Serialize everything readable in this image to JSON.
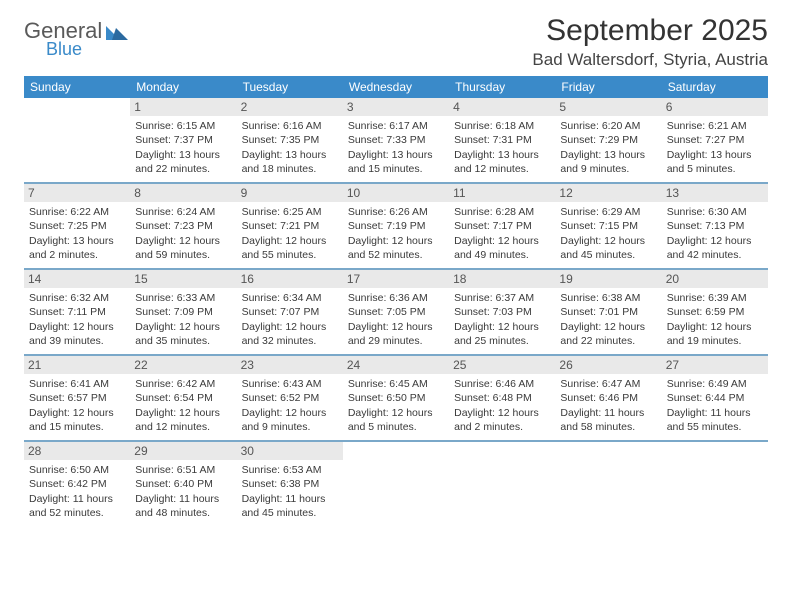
{
  "brand": {
    "top": "General",
    "bottom": "Blue"
  },
  "title": "September 2025",
  "location": "Bad Waltersdorf, Styria, Austria",
  "colors": {
    "header_bg": "#3a8ac9",
    "header_text": "#ffffff",
    "week_divider": "#7aa8c9",
    "daynum_bg": "#e9e9e9",
    "daynum_text": "#555555",
    "body_text": "#3a3a3a",
    "page_bg": "#ffffff"
  },
  "typography": {
    "title_fontsize": 30,
    "location_fontsize": 17,
    "weekday_fontsize": 12,
    "daynum_fontsize": 12,
    "cell_fontsize": 10.5
  },
  "weekdays": [
    "Sunday",
    "Monday",
    "Tuesday",
    "Wednesday",
    "Thursday",
    "Friday",
    "Saturday"
  ],
  "weeks": [
    [
      null,
      {
        "n": "1",
        "sr": "Sunrise: 6:15 AM",
        "ss": "Sunset: 7:37 PM",
        "d1": "Daylight: 13 hours",
        "d2": "and 22 minutes."
      },
      {
        "n": "2",
        "sr": "Sunrise: 6:16 AM",
        "ss": "Sunset: 7:35 PM",
        "d1": "Daylight: 13 hours",
        "d2": "and 18 minutes."
      },
      {
        "n": "3",
        "sr": "Sunrise: 6:17 AM",
        "ss": "Sunset: 7:33 PM",
        "d1": "Daylight: 13 hours",
        "d2": "and 15 minutes."
      },
      {
        "n": "4",
        "sr": "Sunrise: 6:18 AM",
        "ss": "Sunset: 7:31 PM",
        "d1": "Daylight: 13 hours",
        "d2": "and 12 minutes."
      },
      {
        "n": "5",
        "sr": "Sunrise: 6:20 AM",
        "ss": "Sunset: 7:29 PM",
        "d1": "Daylight: 13 hours",
        "d2": "and 9 minutes."
      },
      {
        "n": "6",
        "sr": "Sunrise: 6:21 AM",
        "ss": "Sunset: 7:27 PM",
        "d1": "Daylight: 13 hours",
        "d2": "and 5 minutes."
      }
    ],
    [
      {
        "n": "7",
        "sr": "Sunrise: 6:22 AM",
        "ss": "Sunset: 7:25 PM",
        "d1": "Daylight: 13 hours",
        "d2": "and 2 minutes."
      },
      {
        "n": "8",
        "sr": "Sunrise: 6:24 AM",
        "ss": "Sunset: 7:23 PM",
        "d1": "Daylight: 12 hours",
        "d2": "and 59 minutes."
      },
      {
        "n": "9",
        "sr": "Sunrise: 6:25 AM",
        "ss": "Sunset: 7:21 PM",
        "d1": "Daylight: 12 hours",
        "d2": "and 55 minutes."
      },
      {
        "n": "10",
        "sr": "Sunrise: 6:26 AM",
        "ss": "Sunset: 7:19 PM",
        "d1": "Daylight: 12 hours",
        "d2": "and 52 minutes."
      },
      {
        "n": "11",
        "sr": "Sunrise: 6:28 AM",
        "ss": "Sunset: 7:17 PM",
        "d1": "Daylight: 12 hours",
        "d2": "and 49 minutes."
      },
      {
        "n": "12",
        "sr": "Sunrise: 6:29 AM",
        "ss": "Sunset: 7:15 PM",
        "d1": "Daylight: 12 hours",
        "d2": "and 45 minutes."
      },
      {
        "n": "13",
        "sr": "Sunrise: 6:30 AM",
        "ss": "Sunset: 7:13 PM",
        "d1": "Daylight: 12 hours",
        "d2": "and 42 minutes."
      }
    ],
    [
      {
        "n": "14",
        "sr": "Sunrise: 6:32 AM",
        "ss": "Sunset: 7:11 PM",
        "d1": "Daylight: 12 hours",
        "d2": "and 39 minutes."
      },
      {
        "n": "15",
        "sr": "Sunrise: 6:33 AM",
        "ss": "Sunset: 7:09 PM",
        "d1": "Daylight: 12 hours",
        "d2": "and 35 minutes."
      },
      {
        "n": "16",
        "sr": "Sunrise: 6:34 AM",
        "ss": "Sunset: 7:07 PM",
        "d1": "Daylight: 12 hours",
        "d2": "and 32 minutes."
      },
      {
        "n": "17",
        "sr": "Sunrise: 6:36 AM",
        "ss": "Sunset: 7:05 PM",
        "d1": "Daylight: 12 hours",
        "d2": "and 29 minutes."
      },
      {
        "n": "18",
        "sr": "Sunrise: 6:37 AM",
        "ss": "Sunset: 7:03 PM",
        "d1": "Daylight: 12 hours",
        "d2": "and 25 minutes."
      },
      {
        "n": "19",
        "sr": "Sunrise: 6:38 AM",
        "ss": "Sunset: 7:01 PM",
        "d1": "Daylight: 12 hours",
        "d2": "and 22 minutes."
      },
      {
        "n": "20",
        "sr": "Sunrise: 6:39 AM",
        "ss": "Sunset: 6:59 PM",
        "d1": "Daylight: 12 hours",
        "d2": "and 19 minutes."
      }
    ],
    [
      {
        "n": "21",
        "sr": "Sunrise: 6:41 AM",
        "ss": "Sunset: 6:57 PM",
        "d1": "Daylight: 12 hours",
        "d2": "and 15 minutes."
      },
      {
        "n": "22",
        "sr": "Sunrise: 6:42 AM",
        "ss": "Sunset: 6:54 PM",
        "d1": "Daylight: 12 hours",
        "d2": "and 12 minutes."
      },
      {
        "n": "23",
        "sr": "Sunrise: 6:43 AM",
        "ss": "Sunset: 6:52 PM",
        "d1": "Daylight: 12 hours",
        "d2": "and 9 minutes."
      },
      {
        "n": "24",
        "sr": "Sunrise: 6:45 AM",
        "ss": "Sunset: 6:50 PM",
        "d1": "Daylight: 12 hours",
        "d2": "and 5 minutes."
      },
      {
        "n": "25",
        "sr": "Sunrise: 6:46 AM",
        "ss": "Sunset: 6:48 PM",
        "d1": "Daylight: 12 hours",
        "d2": "and 2 minutes."
      },
      {
        "n": "26",
        "sr": "Sunrise: 6:47 AM",
        "ss": "Sunset: 6:46 PM",
        "d1": "Daylight: 11 hours",
        "d2": "and 58 minutes."
      },
      {
        "n": "27",
        "sr": "Sunrise: 6:49 AM",
        "ss": "Sunset: 6:44 PM",
        "d1": "Daylight: 11 hours",
        "d2": "and 55 minutes."
      }
    ],
    [
      {
        "n": "28",
        "sr": "Sunrise: 6:50 AM",
        "ss": "Sunset: 6:42 PM",
        "d1": "Daylight: 11 hours",
        "d2": "and 52 minutes."
      },
      {
        "n": "29",
        "sr": "Sunrise: 6:51 AM",
        "ss": "Sunset: 6:40 PM",
        "d1": "Daylight: 11 hours",
        "d2": "and 48 minutes."
      },
      {
        "n": "30",
        "sr": "Sunrise: 6:53 AM",
        "ss": "Sunset: 6:38 PM",
        "d1": "Daylight: 11 hours",
        "d2": "and 45 minutes."
      },
      null,
      null,
      null,
      null
    ]
  ]
}
